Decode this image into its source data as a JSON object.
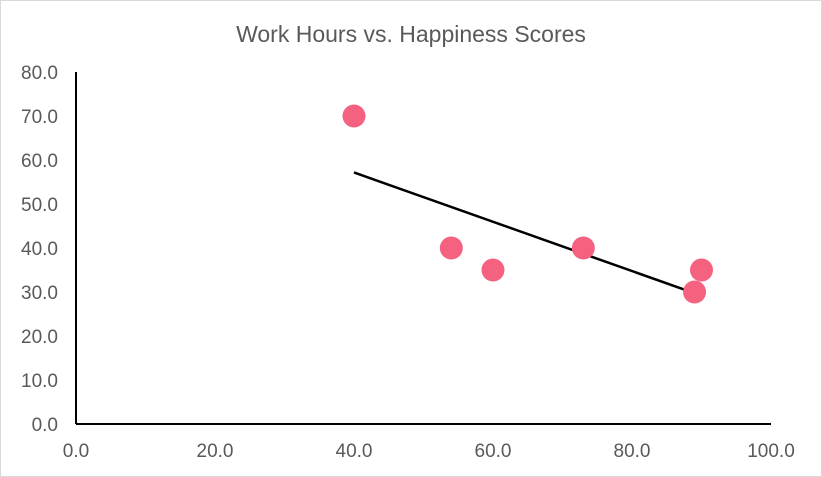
{
  "chart_data": {
    "type": "scatter",
    "title": "Work Hours vs. Happiness Scores",
    "xlabel": "",
    "ylabel": "",
    "xlim": [
      0,
      100
    ],
    "ylim": [
      0,
      80
    ],
    "xticks": [
      0,
      20,
      40,
      60,
      80,
      100
    ],
    "yticks": [
      0,
      10,
      20,
      30,
      40,
      50,
      60,
      70,
      80
    ],
    "tick_format_decimals": 1,
    "grid": false,
    "points": [
      {
        "x": 40,
        "y": 70
      },
      {
        "x": 54,
        "y": 40
      },
      {
        "x": 60,
        "y": 35
      },
      {
        "x": 73,
        "y": 40
      },
      {
        "x": 89,
        "y": 30
      },
      {
        "x": 90,
        "y": 35
      }
    ],
    "trendline": {
      "type": "linear",
      "color": "#000000"
    },
    "colors": {
      "marker": "#f4627f",
      "axis": "#000000",
      "text": "#595959",
      "border": "#d9d9d9"
    }
  }
}
